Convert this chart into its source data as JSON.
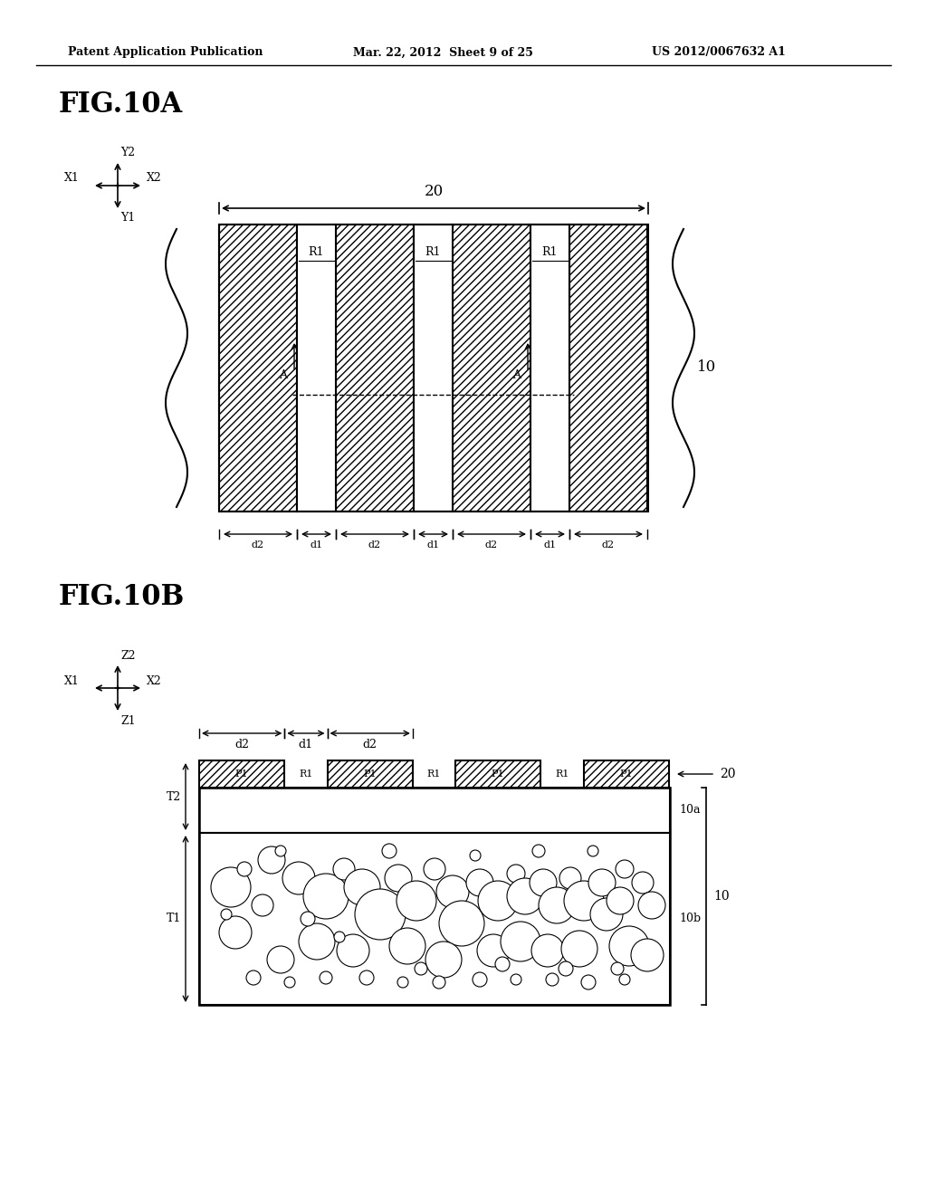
{
  "header_left": "Patent Application Publication",
  "header_mid": "Mar. 22, 2012  Sheet 9 of 25",
  "header_right": "US 2012/0067632 A1",
  "fig_a_label": "FIG.10A",
  "fig_b_label": "FIG.10B",
  "bg_color": "#ffffff",
  "line_color": "#000000",
  "hatch_color": "#000000",
  "hatch_pattern": "///",
  "label_20_a": "20",
  "label_10_a": "10",
  "label_R1": "R1",
  "label_A": "A",
  "label_d1": "d1",
  "label_d2": "d2",
  "label_T1": "T1",
  "label_T2": "T2",
  "label_P1": "P1",
  "label_10a": "10a",
  "label_10b": "10b",
  "label_20b": "20",
  "label_10b2": "10"
}
